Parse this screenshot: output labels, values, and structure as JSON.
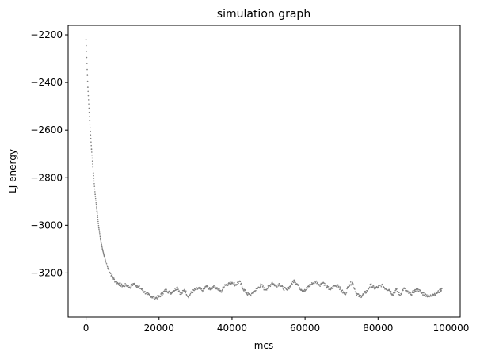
{
  "chart_data": {
    "type": "scatter",
    "title": "simulation graph",
    "xlabel": "mcs",
    "ylabel": "LJ energy",
    "xlim": [
      -4900,
      102500
    ],
    "ylim": [
      -3385,
      -2160
    ],
    "xticks": [
      0,
      20000,
      40000,
      60000,
      80000,
      100000
    ],
    "xtick_labels": [
      "0",
      "20000",
      "40000",
      "60000",
      "80000",
      "100000"
    ],
    "yticks": [
      -3200,
      -3000,
      -2800,
      -2600,
      -2400,
      -2200
    ],
    "ytick_labels": [
      "−3200",
      "−3000",
      "−2800",
      "−2600",
      "−2400",
      "−2200"
    ],
    "marker_color": "#808080",
    "grid": false,
    "series": [
      {
        "x": [
          0,
          500,
          1000,
          1500,
          2000,
          2500,
          3000,
          3500,
          4000,
          4500,
          5000,
          6000,
          7000,
          8000,
          9000,
          10000,
          11000,
          12000,
          13000,
          14000,
          15000,
          16000,
          17000,
          18000,
          19000,
          20000,
          21000,
          22000,
          23000,
          24000,
          25000,
          26000,
          27000,
          28000,
          29000,
          30000,
          31000,
          32000,
          33000,
          34000,
          35000,
          36000,
          37000,
          38000,
          39000,
          40000,
          41000,
          42000,
          43000,
          44000,
          45000,
          46000,
          47000,
          48000,
          49000,
          50000,
          51000,
          52000,
          53000,
          54000,
          55000,
          56000,
          57000,
          58000,
          59000,
          60000,
          61000,
          62000,
          63000,
          64000,
          65000,
          66000,
          67000,
          68000,
          69000,
          70000,
          71000,
          72000,
          73000,
          74000,
          75000,
          76000,
          77000,
          78000,
          79000,
          80000,
          81000,
          82000,
          83000,
          84000,
          85000,
          86000,
          87000,
          88000,
          89000,
          90000,
          91000,
          92000,
          93000,
          94000,
          95000,
          96000,
          97000,
          97500
        ],
        "y": [
          -2220,
          -2420,
          -2560,
          -2680,
          -2780,
          -2870,
          -2940,
          -3010,
          -3060,
          -3100,
          -3130,
          -3180,
          -3210,
          -3235,
          -3245,
          -3255,
          -3250,
          -3260,
          -3245,
          -3255,
          -3265,
          -3280,
          -3290,
          -3300,
          -3305,
          -3300,
          -3285,
          -3270,
          -3285,
          -3275,
          -3260,
          -3290,
          -3270,
          -3300,
          -3280,
          -3270,
          -3265,
          -3275,
          -3255,
          -3270,
          -3255,
          -3265,
          -3280,
          -3250,
          -3245,
          -3240,
          -3250,
          -3235,
          -3265,
          -3285,
          -3295,
          -3280,
          -3265,
          -3250,
          -3270,
          -3260,
          -3240,
          -3255,
          -3245,
          -3265,
          -3270,
          -3255,
          -3230,
          -3250,
          -3270,
          -3275,
          -3255,
          -3245,
          -3235,
          -3250,
          -3240,
          -3260,
          -3270,
          -3255,
          -3250,
          -3275,
          -3290,
          -3250,
          -3240,
          -3285,
          -3300,
          -3290,
          -3275,
          -3250,
          -3265,
          -3260,
          -3250,
          -3265,
          -3270,
          -3290,
          -3270,
          -3295,
          -3265,
          -3280,
          -3290,
          -3275,
          -3270,
          -3285,
          -3290,
          -3300,
          -3290,
          -3285,
          -3275,
          -3265
        ]
      }
    ]
  }
}
